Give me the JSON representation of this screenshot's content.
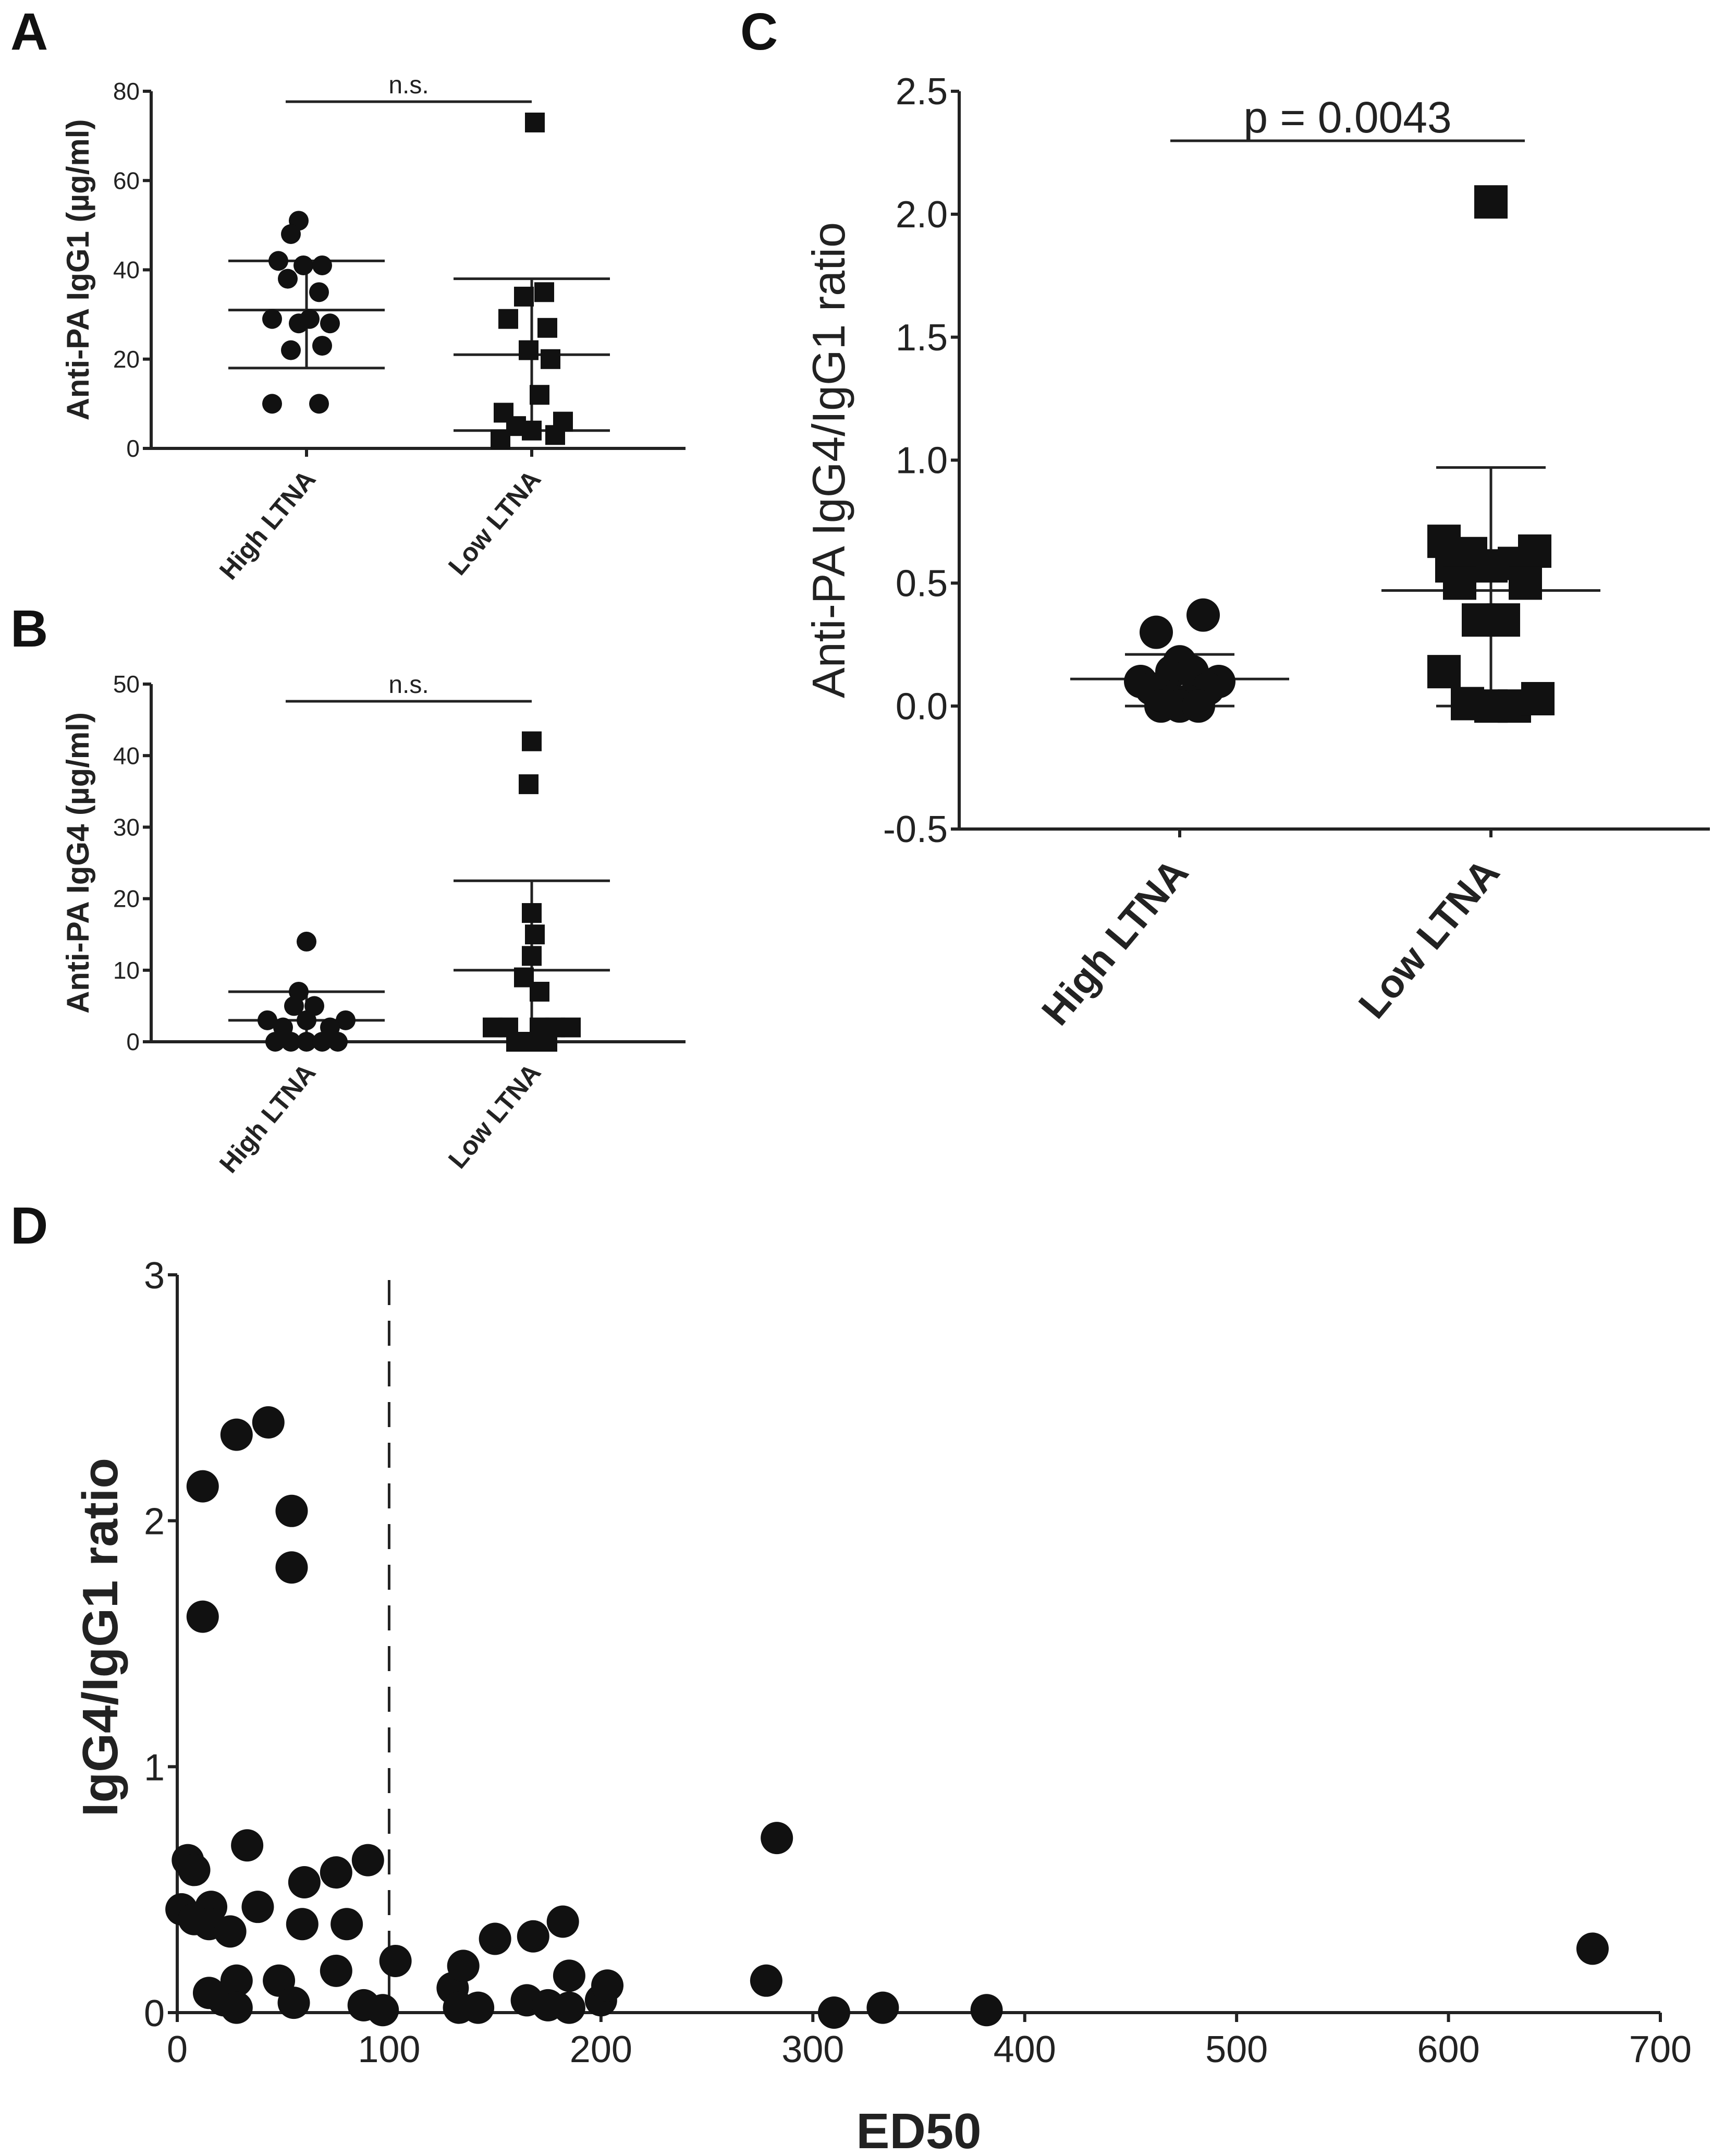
{
  "chart_data": [
    {
      "panel": "A",
      "type": "scatter",
      "ylabel": "Anti-PA IgG1 (µg/ml)",
      "ylim": [
        0,
        80
      ],
      "yticks": [
        "0",
        "20",
        "40",
        "60",
        "80"
      ],
      "yticks_values": [
        0,
        20,
        40,
        60,
        80
      ],
      "categories": [
        "High LTNA",
        "Low LTNA"
      ],
      "annotation": "n.s.",
      "series": [
        {
          "name": "High LTNA",
          "marker": "circle",
          "points": [
            [
              -0.05,
              51
            ],
            [
              -0.1,
              48
            ],
            [
              -0.18,
              42
            ],
            [
              -0.02,
              41
            ],
            [
              0.1,
              41
            ],
            [
              -0.12,
              38
            ],
            [
              0.08,
              35
            ],
            [
              -0.22,
              29
            ],
            [
              -0.05,
              28
            ],
            [
              0.15,
              28
            ],
            [
              -0.1,
              22
            ],
            [
              0.1,
              23
            ],
            [
              -0.22,
              10
            ],
            [
              0.08,
              10
            ],
            [
              0.02,
              29
            ]
          ],
          "mean": 31,
          "sd_low": 18,
          "sd_high": 42
        },
        {
          "name": "Low LTNA",
          "marker": "square",
          "points": [
            [
              0.02,
              73
            ],
            [
              -0.05,
              34
            ],
            [
              0.08,
              35
            ],
            [
              -0.15,
              29
            ],
            [
              0.1,
              27
            ],
            [
              -0.02,
              22
            ],
            [
              0.12,
              20
            ],
            [
              0.05,
              12
            ],
            [
              -0.18,
              8
            ],
            [
              0.2,
              6
            ],
            [
              -0.1,
              5
            ],
            [
              0.0,
              4
            ],
            [
              0.15,
              3
            ],
            [
              -0.2,
              2
            ]
          ],
          "mean": 21,
          "sd_low": 4,
          "sd_high": 38
        }
      ]
    },
    {
      "panel": "B",
      "type": "scatter",
      "ylabel": "Anti-PA  IgG4 (µg/ml)",
      "ylim": [
        0,
        50
      ],
      "yticks": [
        "0",
        "10",
        "20",
        "30",
        "40",
        "50"
      ],
      "yticks_values": [
        0,
        10,
        20,
        30,
        40,
        50
      ],
      "categories": [
        "High LTNA",
        "Low LTNA"
      ],
      "annotation": "n.s.",
      "series": [
        {
          "name": "High LTNA",
          "marker": "circle",
          "points": [
            [
              0.0,
              14
            ],
            [
              -0.05,
              7
            ],
            [
              -0.25,
              3
            ],
            [
              0.25,
              3
            ],
            [
              -0.15,
              2
            ],
            [
              0.15,
              2
            ],
            [
              0.0,
              3
            ],
            [
              -0.2,
              0
            ],
            [
              -0.1,
              0
            ],
            [
              0.0,
              0
            ],
            [
              0.1,
              0
            ],
            [
              0.2,
              0
            ],
            [
              0.05,
              5
            ],
            [
              -0.08,
              5
            ]
          ],
          "mean": 3,
          "sd_low": 0,
          "sd_high": 7
        },
        {
          "name": "Low LTNA",
          "marker": "square",
          "points": [
            [
              0.0,
              42
            ],
            [
              -0.02,
              36
            ],
            [
              0.0,
              18
            ],
            [
              0.02,
              15
            ],
            [
              0.0,
              12
            ],
            [
              -0.05,
              9
            ],
            [
              0.05,
              7
            ],
            [
              -0.25,
              2
            ],
            [
              -0.15,
              2
            ],
            [
              0.15,
              2
            ],
            [
              0.25,
              2
            ],
            [
              0.05,
              2
            ],
            [
              -0.1,
              0
            ],
            [
              0.0,
              0
            ],
            [
              0.1,
              0
            ]
          ],
          "mean": 10,
          "sd_low": 0,
          "sd_high": 22.5
        }
      ]
    },
    {
      "panel": "C",
      "type": "scatter",
      "ylabel": "Anti-PA IgG4/IgG1 ratio",
      "ylim": [
        -0.5,
        2.5
      ],
      "yticks": [
        "-0.5",
        "0.0",
        "0.5",
        "1.0",
        "1.5",
        "2.0",
        "2.5"
      ],
      "yticks_values": [
        -0.5,
        0.0,
        0.5,
        1.0,
        1.5,
        2.0,
        2.5
      ],
      "categories": [
        "High LTNA",
        "Low LTNA"
      ],
      "annotation": "p = 0.0043",
      "series": [
        {
          "name": "High LTNA",
          "marker": "circle",
          "points": [
            [
              -0.15,
              0.3
            ],
            [
              0.15,
              0.37
            ],
            [
              0.0,
              0.18
            ],
            [
              -0.05,
              0.14
            ],
            [
              0.08,
              0.14
            ],
            [
              -0.25,
              0.1
            ],
            [
              0.25,
              0.1
            ],
            [
              -0.18,
              0.07
            ],
            [
              0.18,
              0.07
            ],
            [
              -0.1,
              0.04
            ],
            [
              0.1,
              0.04
            ],
            [
              -0.05,
              0.02
            ],
            [
              0.05,
              0.02
            ],
            [
              0.0,
              0.0
            ],
            [
              -0.12,
              0.0
            ],
            [
              0.12,
              0.0
            ]
          ],
          "mean": 0.11,
          "sd_low": 0.0,
          "sd_high": 0.21
        },
        {
          "name": "Low LTNA",
          "marker": "square",
          "points": [
            [
              0.0,
              2.05
            ],
            [
              -0.3,
              0.67
            ],
            [
              -0.25,
              0.57
            ],
            [
              -0.13,
              0.62
            ],
            [
              0.0,
              0.57
            ],
            [
              0.15,
              0.58
            ],
            [
              0.28,
              0.63
            ],
            [
              -0.2,
              0.5
            ],
            [
              0.22,
              0.5
            ],
            [
              -0.08,
              0.35
            ],
            [
              0.08,
              0.35
            ],
            [
              -0.3,
              0.14
            ],
            [
              -0.15,
              0.01
            ],
            [
              0.0,
              0.0
            ],
            [
              0.15,
              0.0
            ],
            [
              0.3,
              0.03
            ]
          ],
          "mean": 0.47,
          "sd_low": 0.0,
          "sd_high": 0.97
        }
      ]
    },
    {
      "panel": "D",
      "type": "scatter",
      "xlabel": "ED50",
      "ylabel": "IgG4/IgG1 ratio",
      "xlim": [
        0,
        700
      ],
      "ylim": [
        0,
        3
      ],
      "xticks": [
        "0",
        "100",
        "200",
        "300",
        "400",
        "500",
        "600",
        "700"
      ],
      "xticks_values": [
        0,
        100,
        200,
        300,
        400,
        500,
        600,
        700
      ],
      "yticks": [
        "0",
        "1",
        "2",
        "3"
      ],
      "yticks_values": [
        0,
        1,
        2,
        3
      ],
      "vline_x": 100,
      "points": [
        [
          12,
          2.14
        ],
        [
          12,
          1.61
        ],
        [
          28,
          2.35
        ],
        [
          43,
          2.4
        ],
        [
          54,
          2.04
        ],
        [
          54,
          1.81
        ],
        [
          5,
          0.62
        ],
        [
          8,
          0.58
        ],
        [
          33,
          0.68
        ],
        [
          60,
          0.53
        ],
        [
          75,
          0.57
        ],
        [
          90,
          0.62
        ],
        [
          2,
          0.42
        ],
        [
          8,
          0.38
        ],
        [
          16,
          0.43
        ],
        [
          15,
          0.36
        ],
        [
          25,
          0.33
        ],
        [
          38,
          0.43
        ],
        [
          59,
          0.36
        ],
        [
          80,
          0.36
        ],
        [
          15,
          0.08
        ],
        [
          22,
          0.05
        ],
        [
          28,
          0.13
        ],
        [
          28,
          0.02
        ],
        [
          48,
          0.13
        ],
        [
          55,
          0.04
        ],
        [
          75,
          0.17
        ],
        [
          88,
          0.03
        ],
        [
          97,
          0.01
        ],
        [
          103,
          0.21
        ],
        [
          130,
          0.1
        ],
        [
          135,
          0.19
        ],
        [
          133,
          0.02
        ],
        [
          142,
          0.02
        ],
        [
          150,
          0.3
        ],
        [
          165,
          0.05
        ],
        [
          168,
          0.31
        ],
        [
          175,
          0.03
        ],
        [
          182,
          0.37
        ],
        [
          185,
          0.02
        ],
        [
          185,
          0.15
        ],
        [
          200,
          0.05
        ],
        [
          203,
          0.11
        ],
        [
          278,
          0.13
        ],
        [
          283,
          0.71
        ],
        [
          310,
          0.0
        ],
        [
          333,
          0.02
        ],
        [
          382,
          0.01
        ],
        [
          668,
          0.26
        ]
      ]
    }
  ]
}
